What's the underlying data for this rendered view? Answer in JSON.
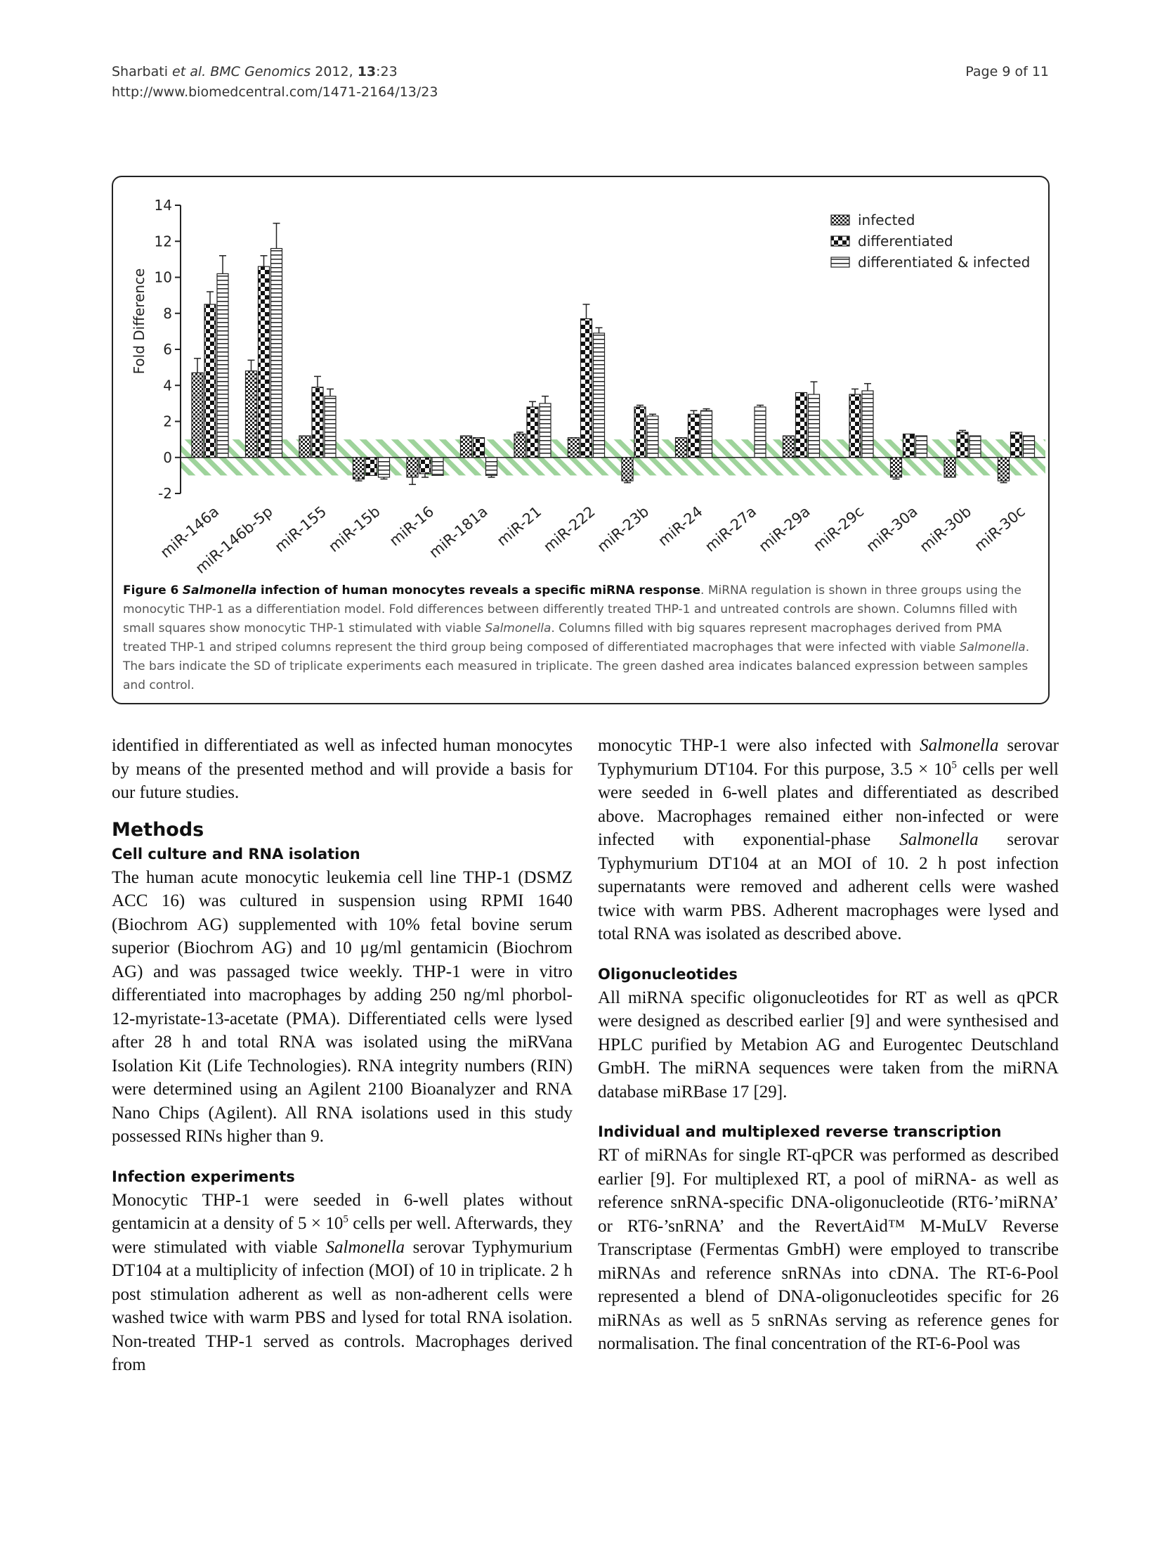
{
  "header": {
    "citation_author": "Sharbati",
    "citation_etal": "et al.",
    "citation_journal": "BMC Genomics",
    "citation_year": "2012,",
    "citation_volume": "13",
    "citation_issue": ":23",
    "url": "http://www.biomedcentral.com/1471-2164/13/23",
    "page": "Page 9 of 11"
  },
  "figure": {
    "caption_label": "Figure 6",
    "caption_title_italic": "Salmonella",
    "caption_title_rest": "infection of human monocytes reveals a specific miRNA response",
    "caption_p1": ". MiRNA regulation is shown in three groups using the monocytic THP-1 as a differentiation model. Fold differences between differently treated THP-1 and untreated controls are shown. Columns filled with small squares show monocytic THP-1 stimulated with viable ",
    "caption_italic1": "Salmonella",
    "caption_p2": ". Columns filled with big squares represent macrophages derived from PMA treated THP-1 and striped columns represent the third group being composed of differentiated macrophages that were infected with viable ",
    "caption_italic2": "Salmonella",
    "caption_p3": ". The bars indicate the SD of triplicate experiments each measured in triplicate. The green dashed area indicates balanced expression between samples and control."
  },
  "chart_data": {
    "type": "bar",
    "ylabel": "Fold Difference",
    "ylim": [
      -2,
      14
    ],
    "yticks": [
      "-2",
      "0",
      "2",
      "4",
      "6",
      "8",
      "10",
      "12",
      "14"
    ],
    "balanced_band": [
      -1,
      1
    ],
    "legend_position": "top-right",
    "categories": [
      "miR-146a",
      "miR-146b-5p",
      "miR-155",
      "miR-15b",
      "miR-16",
      "miR-181a",
      "miR-21",
      "miR-222",
      "miR-23b",
      "miR-24",
      "miR-27a",
      "miR-29a",
      "miR-29c",
      "miR-30a",
      "miR-30b",
      "miR-30c"
    ],
    "series": [
      {
        "name": "infected",
        "pattern": "small-squares",
        "values": [
          4.7,
          4.8,
          1.2,
          -1.2,
          -1.1,
          1.2,
          1.3,
          1.1,
          -1.3,
          1.1,
          null,
          1.2,
          null,
          -1.1,
          -1.1,
          -1.3
        ],
        "sd": [
          0.8,
          0.6,
          0.0,
          0.1,
          0.4,
          0.0,
          0.1,
          0.0,
          0.1,
          0.0,
          null,
          0.0,
          null,
          0.1,
          0.0,
          0.1
        ]
      },
      {
        "name": "differentiated",
        "pattern": "big-squares",
        "values": [
          8.5,
          10.6,
          3.9,
          -1.0,
          -0.9,
          1.1,
          2.8,
          7.7,
          2.8,
          2.4,
          null,
          3.6,
          3.5,
          1.3,
          1.4,
          1.4
        ],
        "sd": [
          0.7,
          0.6,
          0.6,
          0.0,
          0.2,
          0.0,
          0.3,
          0.8,
          0.1,
          0.2,
          null,
          0.0,
          0.3,
          0.0,
          0.1,
          0.0
        ]
      },
      {
        "name": "differentiated & infected",
        "pattern": "stripes",
        "values": [
          10.2,
          11.6,
          3.4,
          -1.1,
          -1.0,
          -1.0,
          3.0,
          6.9,
          2.3,
          2.6,
          2.8,
          3.5,
          3.7,
          1.2,
          1.2,
          1.2
        ],
        "sd": [
          1.0,
          1.4,
          0.4,
          0.1,
          0.0,
          0.1,
          0.4,
          0.3,
          0.1,
          0.1,
          0.1,
          0.7,
          0.4,
          0.0,
          0.0,
          0.0
        ]
      }
    ]
  },
  "left_column": {
    "intro": "identified in differentiated as well as infected human monocytes by means of the presented method and will provide a basis for our future studies.",
    "methods_heading": "Methods",
    "cell_culture_heading": "Cell culture and RNA isolation",
    "cell_culture_text": "The human acute monocytic leukemia cell line THP-1 (DSMZ ACC 16) was cultured in suspension using RPMI 1640 (Biochrom AG) supplemented with 10% fetal bovine serum superior (Biochrom AG) and 10 μg/ml gentamicin (Biochrom AG) and was passaged twice weekly. THP-1 were in vitro differentiated into macrophages by adding 250 ng/ml phorbol-12-myristate-13-acetate (PMA). Differentiated cells were lysed after 28 h and total RNA was isolated using the miRVana Isolation Kit (Life Technologies). RNA integrity numbers (RIN) were determined using an Agilent 2100 Bioanalyzer and RNA Nano Chips (Agilent). All RNA isolations used in this study possessed RINs higher than 9.",
    "infection_heading": "Infection experiments",
    "infection_a": "Monocytic THP-1 were seeded in 6-well plates without gentamicin at a density of 5 × 10",
    "infection_sup": "5",
    "infection_b": " cells per well. Afterwards, they were stimulated with viable ",
    "infection_italic": "Salmonella",
    "infection_c": " serovar Typhymurium DT104 at a multiplicity of infection (MOI) of 10 in triplicate. 2 h post stimulation adherent as well as non-adherent cells were washed twice with warm PBS and lysed for total RNA isolation. Non-treated THP-1 served as controls. Macrophages derived from"
  },
  "right_column": {
    "p1_a": "monocytic THP-1 were also infected with ",
    "p1_italic1": "Salmonella",
    "p1_b": " serovar Typhymurium DT104. For this purpose, 3.5 × 10",
    "p1_sup": "5",
    "p1_c": " cells per well were seeded in 6-well plates and differentiated as described above. Macrophages remained either non-infected or were infected with exponential-phase ",
    "p1_italic2": "Salmonella",
    "p1_d": " serovar Typhymurium DT104 at an MOI of 10. 2 h post infection supernatants were removed and adherent cells were washed twice with warm PBS. Adherent macrophages were lysed and total RNA was isolated as described above.",
    "oligo_heading": "Oligonucleotides",
    "oligo_text": "All miRNA specific oligonucleotides for RT as well as qPCR were designed as described earlier [9] and were synthesised and HPLC purified by Metabion AG and Eurogentec Deutschland GmbH. The miRNA sequences were taken from the miRNA database miRBase 17 [29].",
    "rt_heading": "Individual and multiplexed reverse transcription",
    "rt_text": "RT of miRNAs for single RT-qPCR was performed as described earlier [9]. For multiplexed RT, a pool of miRNA- as well as reference snRNA-specific DNA-oligonucleotide (RT6-’miRNA’ or RT6-’snRNA’ and the RevertAid™ M-MuLV Reverse Transcriptase (Fermentas GmbH) were employed to transcribe miRNAs and reference snRNAs into cDNA. The RT-6-Pool represented a blend of DNA-oligonucleotides specific for 26 miRNAs as well as 5 snRNAs serving as reference genes for normalisation. The final concentration of the RT-6-Pool was"
  }
}
